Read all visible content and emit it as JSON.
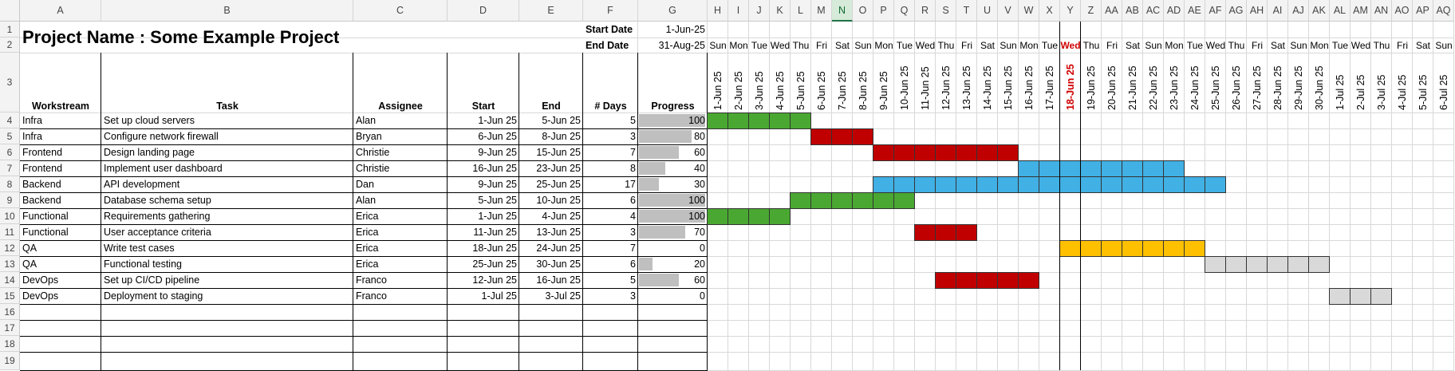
{
  "sheet": {
    "title": "Project Name : Some Example Project",
    "start_label": "Start Date",
    "start_value": "1-Jun-25",
    "end_label": "End Date",
    "end_value": "31-Aug-25",
    "selected_column": "N",
    "left_columns": [
      "A",
      "B",
      "C",
      "D",
      "E",
      "F",
      "G"
    ],
    "headers": {
      "workstream": "Workstream",
      "task": "Task",
      "assignee": "Assignee",
      "start": "Start",
      "end": "End",
      "days": "# Days",
      "progress": "Progress"
    },
    "row_numbers": [
      "1",
      "2",
      "3",
      "4",
      "5",
      "6",
      "7",
      "8",
      "9",
      "10",
      "11",
      "12",
      "13",
      "14",
      "15",
      "16",
      "17",
      "18",
      "19"
    ],
    "timeline_columns": [
      "H",
      "I",
      "J",
      "K",
      "L",
      "M",
      "N",
      "O",
      "P",
      "Q",
      "R",
      "S",
      "T",
      "U",
      "V",
      "W",
      "X",
      "Y",
      "Z",
      "AA",
      "AB",
      "AC",
      "AD",
      "AE",
      "AF",
      "AG",
      "AH",
      "AI",
      "AJ",
      "AK",
      "AL",
      "AM",
      "AN",
      "AO",
      "AP",
      "AQ"
    ],
    "weekdays": [
      "Sun",
      "Mon",
      "Tue",
      "Wed",
      "Thu",
      "Fri",
      "Sat",
      "Sun",
      "Mon",
      "Tue",
      "Wed",
      "Thu",
      "Fri",
      "Sat",
      "Sun",
      "Mon",
      "Tue",
      "Wed",
      "Thu",
      "Fri",
      "Sat",
      "Sun",
      "Mon",
      "Tue",
      "Wed",
      "Thu",
      "Fri",
      "Sat",
      "Sun",
      "Mon",
      "Tue",
      "Wed",
      "Thu",
      "Fri",
      "Sat",
      "Sun"
    ],
    "dates": [
      "1-Jun 25",
      "2-Jun 25",
      "3-Jun 25",
      "4-Jun 25",
      "5-Jun 25",
      "6-Jun 25",
      "7-Jun 25",
      "8-Jun 25",
      "9-Jun 25",
      "10-Jun 25",
      "11-Jun 25",
      "12-Jun 25",
      "13-Jun 25",
      "14-Jun 25",
      "15-Jun 25",
      "16-Jun 25",
      "17-Jun 25",
      "18-Jun 25",
      "19-Jun 25",
      "20-Jun 25",
      "21-Jun 25",
      "22-Jun 25",
      "23-Jun 25",
      "24-Jun 25",
      "25-Jun 25",
      "26-Jun 25",
      "27-Jun 25",
      "28-Jun 25",
      "29-Jun 25",
      "30-Jun 25",
      "1-Jul 25",
      "2-Jul 25",
      "3-Jul 25",
      "4-Jul 25",
      "5-Jul 25",
      "6-Jul 25"
    ],
    "today_date": "18-Jun 25",
    "today_weekday": "Wed",
    "today_color": "#d00000",
    "colors": {
      "green": "#4aa832",
      "red": "#c00000",
      "blue": "#41b0e4",
      "yellow": "#ffc000",
      "grey": "#d9d9d9",
      "progress": "#bfbfbf"
    },
    "tasks": [
      {
        "workstream": "Infra",
        "task": "Set up cloud servers",
        "assignee": "Alan",
        "start": "1-Jun 25",
        "end": "5-Jun 25",
        "days": "5",
        "progress": 100,
        "color": "green",
        "start_day": 1,
        "end_day": 5
      },
      {
        "workstream": "Infra",
        "task": "Configure network firewall",
        "assignee": "Bryan",
        "start": "6-Jun 25",
        "end": "8-Jun 25",
        "days": "3",
        "progress": 80,
        "color": "red",
        "start_day": 6,
        "end_day": 8
      },
      {
        "workstream": "Frontend",
        "task": "Design landing page",
        "assignee": "Christie",
        "start": "9-Jun 25",
        "end": "15-Jun 25",
        "days": "7",
        "progress": 60,
        "color": "red",
        "start_day": 9,
        "end_day": 15
      },
      {
        "workstream": "Frontend",
        "task": "Implement user dashboard",
        "assignee": "Christie",
        "start": "16-Jun 25",
        "end": "23-Jun 25",
        "days": "8",
        "progress": 40,
        "color": "blue",
        "start_day": 16,
        "end_day": 23
      },
      {
        "workstream": "Backend",
        "task": "API development",
        "assignee": "Dan",
        "start": "9-Jun 25",
        "end": "25-Jun 25",
        "days": "17",
        "progress": 30,
        "color": "blue",
        "start_day": 9,
        "end_day": 25
      },
      {
        "workstream": "Backend",
        "task": "Database schema setup",
        "assignee": "Alan",
        "start": "5-Jun 25",
        "end": "10-Jun 25",
        "days": "6",
        "progress": 100,
        "color": "green",
        "start_day": 5,
        "end_day": 10
      },
      {
        "workstream": "Functional",
        "task": "Requirements gathering",
        "assignee": "Erica",
        "start": "1-Jun 25",
        "end": "4-Jun 25",
        "days": "4",
        "progress": 100,
        "color": "green",
        "start_day": 1,
        "end_day": 4
      },
      {
        "workstream": "Functional",
        "task": "User acceptance criteria",
        "assignee": "Erica",
        "start": "11-Jun 25",
        "end": "13-Jun 25",
        "days": "3",
        "progress": 70,
        "color": "red",
        "start_day": 11,
        "end_day": 13
      },
      {
        "workstream": "QA",
        "task": "Write test cases",
        "assignee": "Erica",
        "start": "18-Jun 25",
        "end": "24-Jun 25",
        "days": "7",
        "progress": 0,
        "color": "yellow",
        "start_day": 18,
        "end_day": 24
      },
      {
        "workstream": "QA",
        "task": "Functional testing",
        "assignee": "Erica",
        "start": "25-Jun 25",
        "end": "30-Jun 25",
        "days": "6",
        "progress": 20,
        "color": "grey",
        "start_day": 25,
        "end_day": 30
      },
      {
        "workstream": "DevOps",
        "task": "Set up CI/CD pipeline",
        "assignee": "Franco",
        "start": "12-Jun 25",
        "end": "16-Jun 25",
        "days": "5",
        "progress": 60,
        "color": "red",
        "start_day": 12,
        "end_day": 16
      },
      {
        "workstream": "DevOps",
        "task": "Deployment to staging",
        "assignee": "Franco",
        "start": "1-Jul 25",
        "end": "3-Jul 25",
        "days": "3",
        "progress": 0,
        "color": "grey",
        "start_day": 31,
        "end_day": 33
      }
    ]
  }
}
